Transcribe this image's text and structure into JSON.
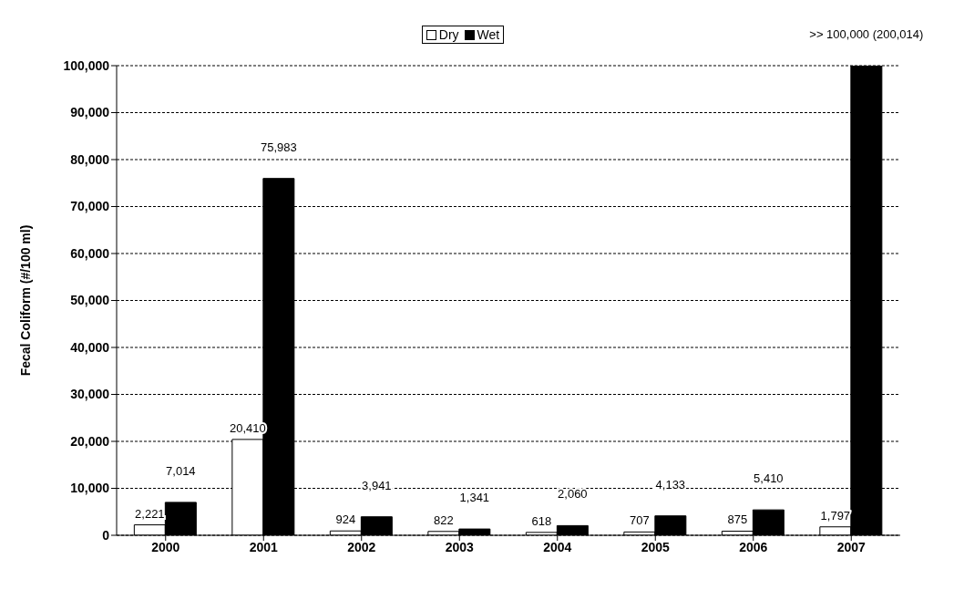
{
  "chart_data": {
    "type": "bar",
    "ylabel": "Fecal Coliform (#/100 ml)",
    "categories": [
      "2000",
      "2001",
      "2002",
      "2003",
      "2004",
      "2005",
      "2006",
      "2007"
    ],
    "series": [
      {
        "name": "Dry",
        "color": "#ffffff",
        "values": [
          2221,
          20410,
          924,
          822,
          618,
          707,
          875,
          1797
        ],
        "value_labels": [
          "2,221",
          "20,410",
          "924",
          "822",
          "618",
          "707",
          "875",
          "1,797"
        ]
      },
      {
        "name": "Wet",
        "color": "#000000",
        "values": [
          7014,
          75983,
          3941,
          1341,
          2060,
          4133,
          5410,
          100000
        ],
        "value_labels": [
          "7,014",
          "75,983",
          "3,941",
          "1,341",
          "2,060",
          "4,133",
          "5,410",
          ">> 100,000 (200,014)"
        ]
      }
    ],
    "ylim": [
      0,
      100000
    ],
    "yticks": [
      0,
      {
        "value": 10000,
        "label": "10,000"
      },
      {
        "value": 20000,
        "label": "20,000"
      },
      {
        "value": 30000,
        "label": "30,000"
      },
      {
        "value": 40000,
        "label": "40,000"
      },
      {
        "value": 50000,
        "label": "50,000"
      },
      {
        "value": 60000,
        "label": "60,000"
      },
      {
        "value": 70000,
        "label": "70,000"
      },
      {
        "value": 80000,
        "label": "80,000"
      },
      {
        "value": 90000,
        "label": "90,000"
      },
      {
        "value": 100000,
        "label": "100,000"
      }
    ],
    "grid": "y",
    "legend": "top"
  }
}
